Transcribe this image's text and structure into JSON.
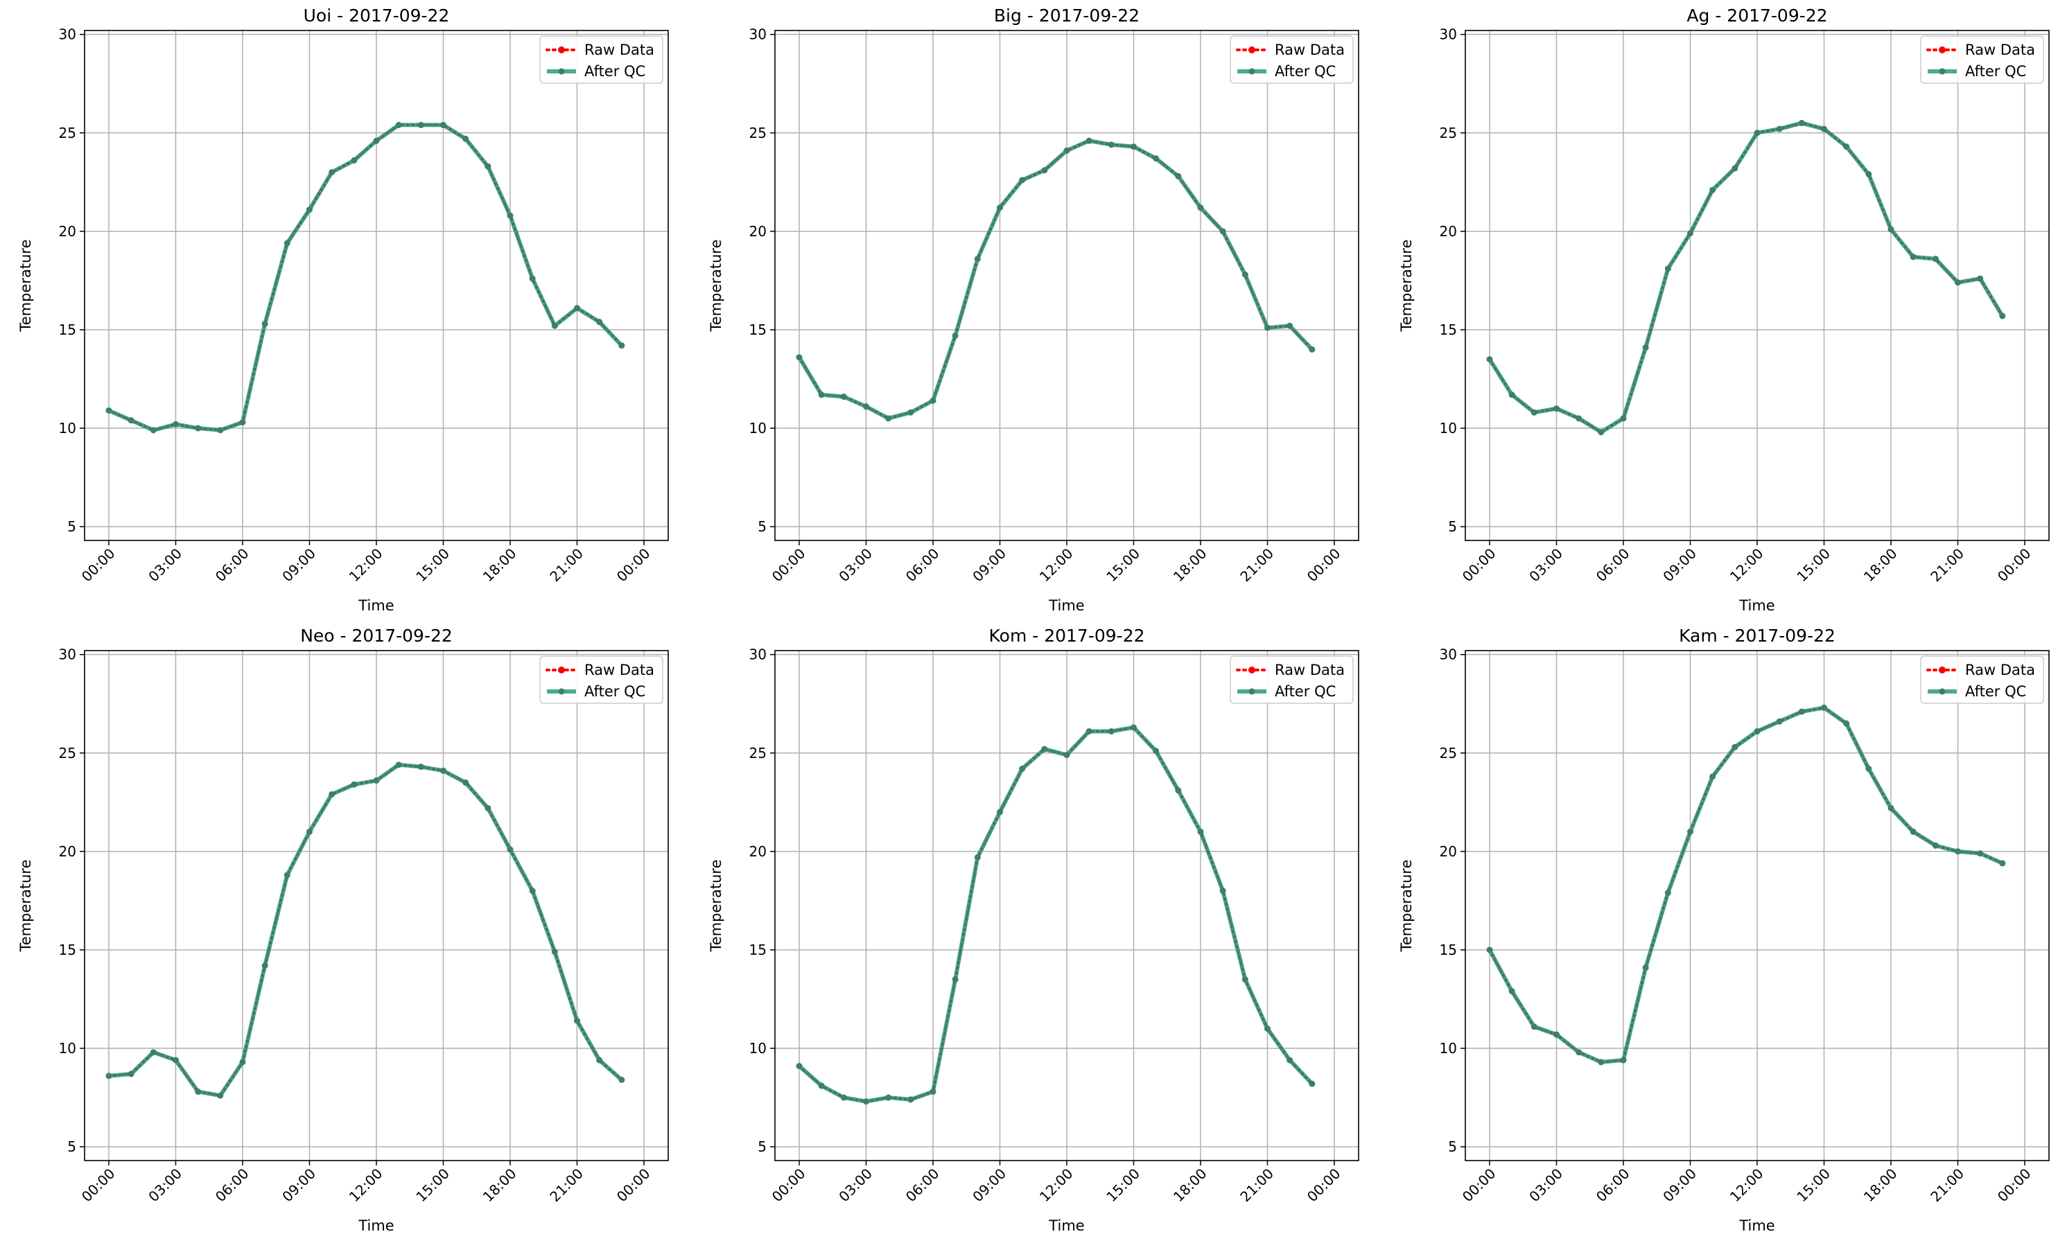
{
  "figure": {
    "x_ticks": [
      "00:00",
      "03:00",
      "06:00",
      "09:00",
      "12:00",
      "15:00",
      "18:00",
      "21:00",
      "00:00"
    ],
    "y_ticks": [
      5,
      10,
      15,
      20,
      25,
      30
    ],
    "colors": {
      "raw": "#ff0000",
      "qc": "#2a9d78",
      "grid": "#b0b0b0"
    }
  },
  "chart_data": [
    {
      "type": "line",
      "title": "Uoi - 2017-09-22",
      "xlabel": "Time",
      "ylabel": "Temperature",
      "ylim": [
        4.3,
        30.2
      ],
      "x": [
        "00:00",
        "01:00",
        "02:00",
        "03:00",
        "04:00",
        "05:00",
        "06:00",
        "07:00",
        "08:00",
        "09:00",
        "10:00",
        "11:00",
        "12:00",
        "13:00",
        "14:00",
        "15:00",
        "16:00",
        "17:00",
        "18:00",
        "19:00",
        "20:00",
        "21:00",
        "22:00",
        "23:00"
      ],
      "series": [
        {
          "name": "Raw Data",
          "values": [
            10.9,
            10.4,
            9.9,
            10.2,
            10.0,
            9.9,
            10.3,
            15.3,
            19.4,
            21.1,
            23.0,
            23.6,
            24.6,
            25.4,
            25.4,
            25.4,
            24.7,
            23.3,
            20.8,
            17.6,
            15.2,
            16.1,
            15.4,
            14.2
          ]
        },
        {
          "name": "After QC",
          "values": [
            10.9,
            10.4,
            9.9,
            10.2,
            10.0,
            9.9,
            10.3,
            15.3,
            19.4,
            21.1,
            23.0,
            23.6,
            24.6,
            25.4,
            25.4,
            25.4,
            24.7,
            23.3,
            20.8,
            17.6,
            15.2,
            16.1,
            15.4,
            14.2
          ]
        }
      ],
      "grid": true,
      "legend": "upper right"
    },
    {
      "type": "line",
      "title": "Big - 2017-09-22",
      "xlabel": "Time",
      "ylabel": "Temperature",
      "ylim": [
        4.3,
        30.2
      ],
      "x": [
        "00:00",
        "01:00",
        "02:00",
        "03:00",
        "04:00",
        "05:00",
        "06:00",
        "07:00",
        "08:00",
        "09:00",
        "10:00",
        "11:00",
        "12:00",
        "13:00",
        "14:00",
        "15:00",
        "16:00",
        "17:00",
        "18:00",
        "19:00",
        "20:00",
        "21:00",
        "22:00",
        "23:00"
      ],
      "series": [
        {
          "name": "Raw Data",
          "values": [
            13.6,
            11.7,
            11.6,
            11.1,
            10.5,
            10.8,
            11.4,
            14.7,
            18.6,
            21.2,
            22.6,
            23.1,
            24.1,
            24.6,
            24.4,
            24.3,
            23.7,
            22.8,
            21.2,
            20.0,
            17.8,
            15.1,
            15.2,
            14.0
          ]
        },
        {
          "name": "After QC",
          "values": [
            13.6,
            11.7,
            11.6,
            11.1,
            10.5,
            10.8,
            11.4,
            14.7,
            18.6,
            21.2,
            22.6,
            23.1,
            24.1,
            24.6,
            24.4,
            24.3,
            23.7,
            22.8,
            21.2,
            20.0,
            17.8,
            15.1,
            15.2,
            14.0
          ]
        }
      ],
      "grid": true,
      "legend": "upper right"
    },
    {
      "type": "line",
      "title": "Ag - 2017-09-22",
      "xlabel": "Time",
      "ylabel": "Temperature",
      "ylim": [
        4.3,
        30.2
      ],
      "x": [
        "00:00",
        "01:00",
        "02:00",
        "03:00",
        "04:00",
        "05:00",
        "06:00",
        "07:00",
        "08:00",
        "09:00",
        "10:00",
        "11:00",
        "12:00",
        "13:00",
        "14:00",
        "15:00",
        "16:00",
        "17:00",
        "18:00",
        "19:00",
        "20:00",
        "21:00",
        "22:00",
        "23:00"
      ],
      "series": [
        {
          "name": "Raw Data",
          "values": [
            13.5,
            11.7,
            10.8,
            11.0,
            10.5,
            9.8,
            10.5,
            14.1,
            18.1,
            19.9,
            22.1,
            23.2,
            25.0,
            25.2,
            25.5,
            25.2,
            24.3,
            22.9,
            20.1,
            18.7,
            18.6,
            17.4,
            17.6,
            15.7
          ]
        },
        {
          "name": "After QC",
          "values": [
            13.5,
            11.7,
            10.8,
            11.0,
            10.5,
            9.8,
            10.5,
            14.1,
            18.1,
            19.9,
            22.1,
            23.2,
            25.0,
            25.2,
            25.5,
            25.2,
            24.3,
            22.9,
            20.1,
            18.7,
            18.6,
            17.4,
            17.6,
            15.7
          ]
        }
      ],
      "grid": true,
      "legend": "upper right"
    },
    {
      "type": "line",
      "title": "Neo - 2017-09-22",
      "xlabel": "Time",
      "ylabel": "Temperature",
      "ylim": [
        4.3,
        30.2
      ],
      "x": [
        "00:00",
        "01:00",
        "02:00",
        "03:00",
        "04:00",
        "05:00",
        "06:00",
        "07:00",
        "08:00",
        "09:00",
        "10:00",
        "11:00",
        "12:00",
        "13:00",
        "14:00",
        "15:00",
        "16:00",
        "17:00",
        "18:00",
        "19:00",
        "20:00",
        "21:00",
        "22:00",
        "23:00"
      ],
      "series": [
        {
          "name": "Raw Data",
          "values": [
            8.6,
            8.7,
            9.8,
            9.4,
            7.8,
            7.6,
            9.3,
            14.2,
            18.8,
            21.0,
            22.9,
            23.4,
            23.6,
            24.4,
            24.3,
            24.1,
            23.5,
            22.2,
            20.1,
            18.0,
            14.9,
            11.4,
            9.4,
            8.4
          ]
        },
        {
          "name": "After QC",
          "values": [
            8.6,
            8.7,
            9.8,
            9.4,
            7.8,
            7.6,
            9.3,
            14.2,
            18.8,
            21.0,
            22.9,
            23.4,
            23.6,
            24.4,
            24.3,
            24.1,
            23.5,
            22.2,
            20.1,
            18.0,
            14.9,
            11.4,
            9.4,
            8.4
          ]
        }
      ],
      "grid": true,
      "legend": "upper right"
    },
    {
      "type": "line",
      "title": "Kom - 2017-09-22",
      "xlabel": "Time",
      "ylabel": "Temperature",
      "ylim": [
        4.3,
        30.2
      ],
      "x": [
        "00:00",
        "01:00",
        "02:00",
        "03:00",
        "04:00",
        "05:00",
        "06:00",
        "07:00",
        "08:00",
        "09:00",
        "10:00",
        "11:00",
        "12:00",
        "13:00",
        "14:00",
        "15:00",
        "16:00",
        "17:00",
        "18:00",
        "19:00",
        "20:00",
        "21:00",
        "22:00",
        "23:00"
      ],
      "series": [
        {
          "name": "Raw Data",
          "values": [
            9.1,
            8.1,
            7.5,
            7.3,
            7.5,
            7.4,
            7.8,
            13.5,
            19.7,
            22.0,
            24.2,
            25.2,
            24.9,
            26.1,
            26.1,
            26.3,
            25.1,
            23.1,
            21.0,
            18.0,
            13.5,
            11.0,
            9.4,
            8.2
          ]
        },
        {
          "name": "After QC",
          "values": [
            9.1,
            8.1,
            7.5,
            7.3,
            7.5,
            7.4,
            7.8,
            13.5,
            19.7,
            22.0,
            24.2,
            25.2,
            24.9,
            26.1,
            26.1,
            26.3,
            25.1,
            23.1,
            21.0,
            18.0,
            13.5,
            11.0,
            9.4,
            8.2
          ]
        }
      ],
      "grid": true,
      "legend": "upper right"
    },
    {
      "type": "line",
      "title": "Kam - 2017-09-22",
      "xlabel": "Time",
      "ylabel": "Temperature",
      "ylim": [
        4.3,
        30.2
      ],
      "x": [
        "00:00",
        "01:00",
        "02:00",
        "03:00",
        "04:00",
        "05:00",
        "06:00",
        "07:00",
        "08:00",
        "09:00",
        "10:00",
        "11:00",
        "12:00",
        "13:00",
        "14:00",
        "15:00",
        "16:00",
        "17:00",
        "18:00",
        "19:00",
        "20:00",
        "21:00",
        "22:00",
        "23:00"
      ],
      "series": [
        {
          "name": "Raw Data",
          "values": [
            15.0,
            12.9,
            11.1,
            10.7,
            9.8,
            9.3,
            9.4,
            14.1,
            17.9,
            21.0,
            23.8,
            25.3,
            26.1,
            26.6,
            27.1,
            27.3,
            26.5,
            24.2,
            22.2,
            21.0,
            20.3,
            20.0,
            19.9,
            19.4
          ]
        },
        {
          "name": "After QC",
          "values": [
            15.0,
            12.9,
            11.1,
            10.7,
            9.8,
            9.3,
            9.4,
            14.1,
            17.9,
            21.0,
            23.8,
            25.3,
            26.1,
            26.6,
            27.1,
            27.3,
            26.5,
            24.2,
            22.2,
            21.0,
            20.3,
            20.0,
            19.9,
            19.4
          ]
        }
      ],
      "grid": true,
      "legend": "upper right"
    }
  ]
}
